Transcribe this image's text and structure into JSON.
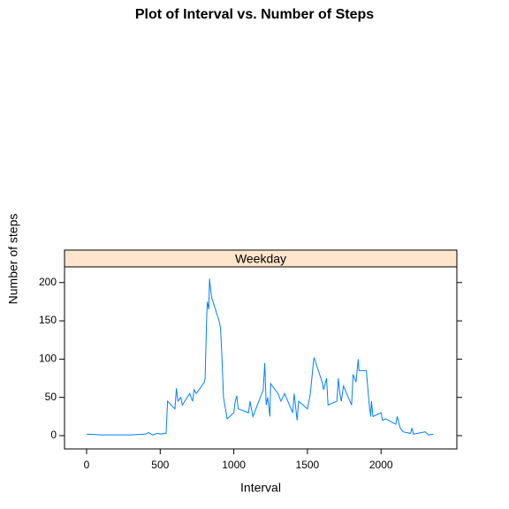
{
  "chart_data": {
    "type": "line",
    "title": "Plot of Interval vs. Number of Steps",
    "panel": "Weekday",
    "xlabel": "Interval",
    "ylabel": "Number of steps",
    "x": [
      0,
      100,
      200,
      300,
      400,
      420,
      450,
      480,
      500,
      525,
      540,
      550,
      600,
      610,
      620,
      640,
      650,
      700,
      720,
      730,
      745,
      800,
      805,
      815,
      820,
      830,
      835,
      840,
      850,
      900,
      910,
      920,
      930,
      955,
      1000,
      1010,
      1020,
      1030,
      1100,
      1110,
      1130,
      1150,
      1200,
      1210,
      1220,
      1230,
      1245,
      1250,
      1300,
      1320,
      1345,
      1400,
      1410,
      1430,
      1440,
      1500,
      1520,
      1540,
      1545,
      1600,
      1610,
      1630,
      1640,
      1700,
      1710,
      1720,
      1730,
      1745,
      1800,
      1810,
      1830,
      1845,
      1850,
      1900,
      1920,
      1930,
      1935,
      1945,
      2000,
      2010,
      2030,
      2100,
      2110,
      2130,
      2150,
      2200,
      2210,
      2220,
      2300,
      2320,
      2355
    ],
    "series": [
      {
        "name": "Weekday",
        "color": "#0080ff",
        "values": [
          2,
          1,
          1,
          1,
          2,
          4,
          1,
          3,
          2,
          3,
          3,
          45,
          35,
          62,
          45,
          50,
          40,
          55,
          45,
          60,
          55,
          70,
          75,
          150,
          175,
          165,
          205,
          195,
          180,
          150,
          140,
          100,
          50,
          22,
          30,
          45,
          52,
          35,
          30,
          45,
          25,
          35,
          60,
          95,
          40,
          50,
          25,
          68,
          55,
          45,
          55,
          30,
          55,
          20,
          45,
          35,
          55,
          95,
          102,
          70,
          60,
          75,
          40,
          45,
          75,
          55,
          45,
          65,
          40,
          80,
          70,
          100,
          85,
          85,
          40,
          25,
          45,
          25,
          30,
          20,
          22,
          15,
          25,
          10,
          5,
          3,
          10,
          2,
          5,
          1,
          2
        ]
      }
    ],
    "xlim": [
      -150,
      2515
    ],
    "ylim": [
      -17.3,
      220.5
    ],
    "xticks": [
      0,
      500,
      1000,
      1500,
      2000
    ],
    "yticks": [
      0,
      50,
      100,
      150,
      200
    ]
  }
}
